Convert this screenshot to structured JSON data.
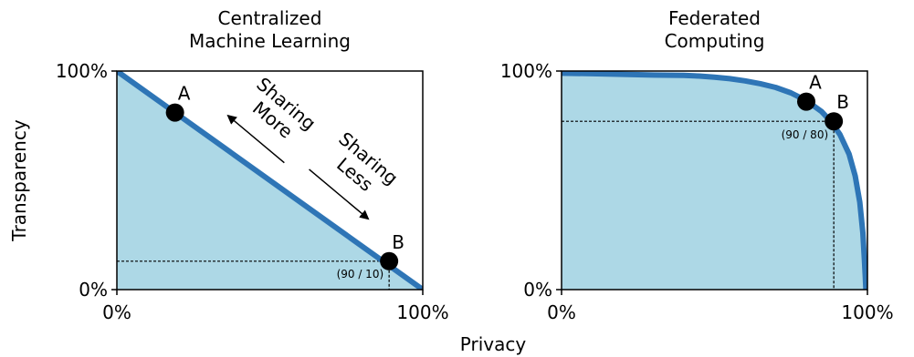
{
  "figure": {
    "xlabel": "Privacy",
    "ylabel": "Transparency"
  },
  "chart_data": [
    {
      "type": "area",
      "title": "Centralized\nMachine Learning",
      "xlim": [
        0,
        100
      ],
      "ylim": [
        0,
        100
      ],
      "xticks": [
        "0%",
        "100%"
      ],
      "yticks": [
        "0%",
        "100%"
      ],
      "series": [
        {
          "x": [
            0,
            100
          ],
          "y": [
            100,
            0
          ]
        }
      ],
      "points": [
        {
          "label": "A",
          "x": 19,
          "y": 81
        },
        {
          "label": "B",
          "x": 89,
          "y": 13
        }
      ],
      "guide": {
        "x": 89,
        "y": 13,
        "label": "(90 / 10)"
      },
      "annotations": [
        {
          "text": "Sharing\nMore",
          "direction": "up-left"
        },
        {
          "text": "Sharing\nLess",
          "direction": "down-right"
        }
      ],
      "colors": {
        "line": "#2e75b6",
        "fill": "#add8e6",
        "point": "#000000"
      }
    },
    {
      "type": "area",
      "title": "Federated\nComputing",
      "xlim": [
        0,
        100
      ],
      "ylim": [
        0,
        100
      ],
      "xticks": [
        "0%",
        "100%"
      ],
      "yticks": [
        "0%",
        "100%"
      ],
      "series": [
        {
          "x": [
            0,
            10,
            20,
            30,
            40,
            45,
            50,
            55,
            60,
            65,
            70,
            75,
            80,
            85,
            88,
            91,
            94,
            96,
            97.5,
            98.5,
            99,
            99.3,
            99.5
          ],
          "y": [
            99,
            98.8,
            98.5,
            98.2,
            98,
            97.7,
            97.2,
            96.5,
            95.5,
            94.2,
            92.5,
            90,
            86.5,
            81.5,
            77,
            71,
            62,
            52,
            40,
            26,
            14,
            6,
            0
          ]
        }
      ],
      "points": [
        {
          "label": "A",
          "x": 80,
          "y": 86
        },
        {
          "label": "B",
          "x": 89,
          "y": 77
        }
      ],
      "guide": {
        "x": 89,
        "y": 77,
        "label": "(90 / 80)"
      },
      "colors": {
        "line": "#2e75b6",
        "fill": "#add8e6",
        "point": "#000000"
      }
    }
  ]
}
